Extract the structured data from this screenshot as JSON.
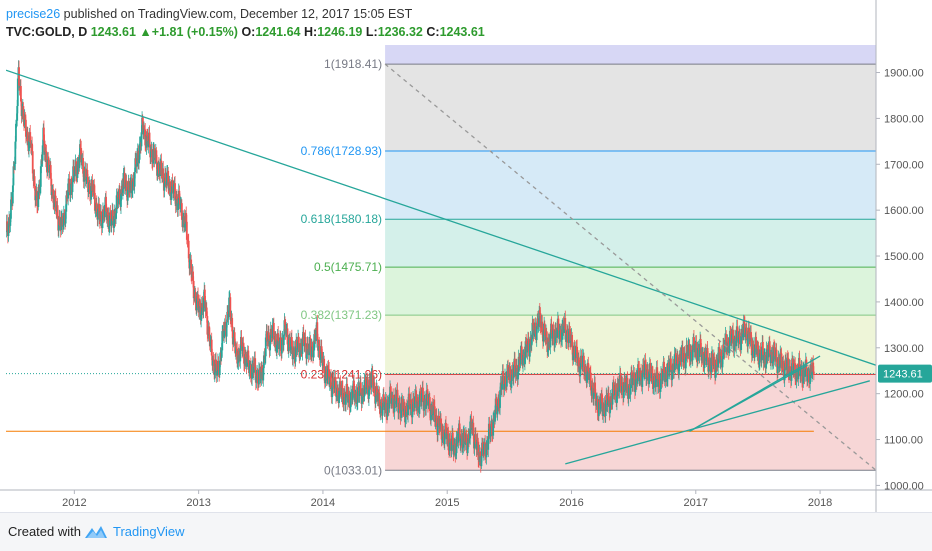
{
  "header": {
    "author": "precise26",
    "published": " published on TradingView.com, December 12, 2017 15:05 EST"
  },
  "ohlc": {
    "symbol": "TVC:GOLD, D",
    "last": "1243.61",
    "change": "+1.81 (+0.15%)",
    "o_label": "O:",
    "o": "1241.64",
    "h_label": "H:",
    "h": "1246.19",
    "l_label": "L:",
    "l": "1236.32",
    "c_label": "C:",
    "c": "1243.61"
  },
  "price_badge": "1243.61",
  "footer": {
    "created_with": "Created with",
    "brand": "TradingView"
  },
  "chart_data": {
    "type": "candlestick",
    "symbol": "TVC:GOLD",
    "interval": "D",
    "y_axis_ticks": [
      "1900.00",
      "1800.00",
      "1700.00",
      "1600.00",
      "1500.00",
      "1400.00",
      "1300.00",
      "1200.00",
      "1100.00",
      "1000.00"
    ],
    "x_axis_ticks": [
      "2012",
      "2013",
      "2014",
      "2015",
      "2016",
      "2017",
      "2018"
    ],
    "ylim": [
      990,
      1960
    ],
    "xlim": [
      2011.45,
      2018.45
    ],
    "fibonacci": {
      "levels": [
        {
          "label": "1(1918.41)",
          "ratio": 1,
          "price": 1918.41,
          "color": "#787b86"
        },
        {
          "label": "0.786(1728.93)",
          "ratio": 0.786,
          "price": 1728.93,
          "color": "#2196f3"
        },
        {
          "label": "0.618(1580.18)",
          "ratio": 0.618,
          "price": 1580.18,
          "color": "#26a69a"
        },
        {
          "label": "0.5(1475.71)",
          "ratio": 0.5,
          "price": 1475.71,
          "color": "#4caf50"
        },
        {
          "label": "0.382(1371.23)",
          "ratio": 0.382,
          "price": 1371.23,
          "color": "#81c784"
        },
        {
          "label": "0.236(1241.96)",
          "ratio": 0.236,
          "price": 1241.96,
          "color": "#d32f2f"
        },
        {
          "label": "0(1033.01)",
          "ratio": 0,
          "price": 1033.01,
          "color": "#787b86"
        }
      ],
      "extension_top": 1975,
      "zone_colors": [
        "#d7d7f5",
        "#e4e4e4",
        "#d6eaf7",
        "#d4f0ea",
        "#dcf4dc",
        "#eef5d8",
        "#f7d6d6"
      ],
      "start_x": 2014.5,
      "end_x": 2018.45
    },
    "trendlines": [
      {
        "x1": 2011.45,
        "y1": 1905,
        "x2": 2018.45,
        "y2": 1262,
        "color": "#26a69a"
      },
      {
        "x1": 2014.5,
        "y1": 1918.41,
        "x2": 2018.45,
        "y2": 1033.01,
        "color": "#999999",
        "dashed": true
      },
      {
        "x1": 2015.95,
        "y1": 1047,
        "x2": 2018.4,
        "y2": 1228,
        "color": "#26a69a"
      },
      {
        "x1": 2016.95,
        "y1": 1118,
        "x2": 2018.0,
        "y2": 1282,
        "color": "#26a69a"
      },
      {
        "x1": 2016.95,
        "y1": 1118,
        "x2": 2017.9,
        "y2": 1262,
        "color": "#26a69a"
      }
    ],
    "horizontal_lines": [
      {
        "y": 1118,
        "x1": 2011.45,
        "x2": 2017.95,
        "color": "#f57c00"
      }
    ],
    "last_price": 1243.61,
    "series": [
      {
        "name": "GOLD",
        "x": [
          2011.45,
          2011.5,
          2011.55,
          2011.6,
          2011.65,
          2011.7,
          2011.75,
          2011.8,
          2011.85,
          2011.9,
          2011.95,
          2012.0,
          2012.05,
          2012.1,
          2012.15,
          2012.2,
          2012.25,
          2012.3,
          2012.35,
          2012.4,
          2012.45,
          2012.5,
          2012.55,
          2012.6,
          2012.65,
          2012.7,
          2012.75,
          2012.8,
          2012.85,
          2012.9,
          2012.95,
          2013.0,
          2013.05,
          2013.1,
          2013.15,
          2013.2,
          2013.25,
          2013.3,
          2013.35,
          2013.4,
          2013.45,
          2013.5,
          2013.55,
          2013.6,
          2013.65,
          2013.7,
          2013.75,
          2013.8,
          2013.85,
          2013.9,
          2013.95,
          2014.0,
          2014.05,
          2014.1,
          2014.15,
          2014.2,
          2014.25,
          2014.3,
          2014.35,
          2014.4,
          2014.45,
          2014.5,
          2014.55,
          2014.6,
          2014.65,
          2014.7,
          2014.75,
          2014.8,
          2014.85,
          2014.9,
          2014.95,
          2015.0,
          2015.05,
          2015.1,
          2015.15,
          2015.2,
          2015.25,
          2015.3,
          2015.35,
          2015.4,
          2015.45,
          2015.5,
          2015.55,
          2015.6,
          2015.65,
          2015.7,
          2015.75,
          2015.8,
          2015.85,
          2015.9,
          2015.95,
          2016.0,
          2016.05,
          2016.1,
          2016.15,
          2016.2,
          2016.25,
          2016.3,
          2016.35,
          2016.4,
          2016.45,
          2016.5,
          2016.55,
          2016.6,
          2016.65,
          2016.7,
          2016.75,
          2016.8,
          2016.85,
          2016.9,
          2016.95,
          2017.0,
          2017.05,
          2017.1,
          2017.15,
          2017.2,
          2017.25,
          2017.3,
          2017.35,
          2017.4,
          2017.45,
          2017.5,
          2017.55,
          2017.6,
          2017.65,
          2017.7,
          2017.75,
          2017.8,
          2017.85,
          2017.9,
          2017.95
        ],
        "close": [
          1540,
          1620,
          1890,
          1780,
          1740,
          1600,
          1750,
          1680,
          1600,
          1560,
          1640,
          1680,
          1720,
          1660,
          1640,
          1580,
          1600,
          1570,
          1620,
          1660,
          1640,
          1700,
          1780,
          1740,
          1710,
          1680,
          1660,
          1640,
          1610,
          1560,
          1440,
          1380,
          1400,
          1290,
          1240,
          1330,
          1390,
          1280,
          1300,
          1260,
          1250,
          1230,
          1320,
          1330,
          1300,
          1340,
          1290,
          1300,
          1310,
          1290,
          1330,
          1260,
          1230,
          1210,
          1200,
          1190,
          1200,
          1200,
          1215,
          1225,
          1180,
          1170,
          1190,
          1180,
          1160,
          1175,
          1180,
          1190,
          1180,
          1150,
          1120,
          1105,
          1080,
          1110,
          1090,
          1130,
          1065,
          1075,
          1120,
          1170,
          1230,
          1240,
          1250,
          1280,
          1300,
          1340,
          1360,
          1310,
          1330,
          1335,
          1340,
          1310,
          1270,
          1260,
          1230,
          1180,
          1170,
          1180,
          1205,
          1220,
          1210,
          1230,
          1240,
          1250,
          1235,
          1225,
          1245,
          1255,
          1270,
          1280,
          1290,
          1300,
          1285,
          1270,
          1260,
          1280,
          1310,
          1320,
          1320,
          1340,
          1305,
          1290,
          1280,
          1290,
          1275,
          1260,
          1255,
          1250,
          1248,
          1244,
          1243.61
        ]
      }
    ]
  }
}
